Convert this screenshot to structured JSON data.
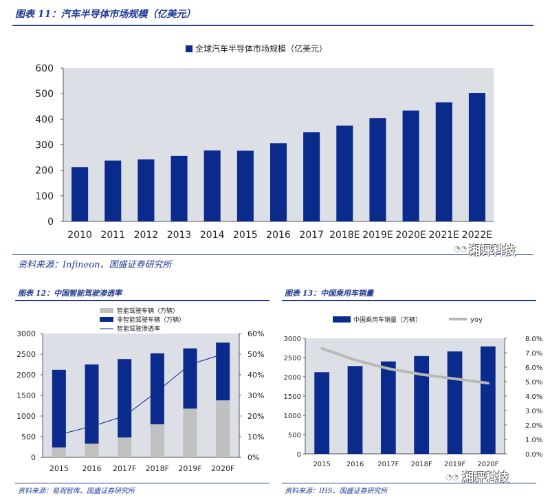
{
  "colors": {
    "accent": "#1f3a93",
    "bar_primary": "#0a2a8c",
    "bar_secondary": "#c0c0c0",
    "line": "#b8b8b8",
    "plot_bg": "#dcdfe6"
  },
  "fig11": {
    "header": "图表 11：汽车半导体市场规模（亿美元）",
    "source": "资料来源：Infineon、国盛证券研究所"
  },
  "fig12": {
    "header": "图表 12：中国智能驾驶渗透率",
    "source": "资料来源：易观智库、国盛证券研究所"
  },
  "fig13": {
    "header": "图表 13：中国乘用车销量",
    "source": "资料来源：IHS、国盛证券研究所"
  },
  "watermark": {
    "text": "湘评科技",
    "icon": "wechat-icon"
  },
  "chart_data": [
    {
      "id": "chart11",
      "type": "bar",
      "title": "",
      "categories": [
        "2010",
        "2011",
        "2012",
        "2013",
        "2014",
        "2015",
        "2016",
        "2017",
        "2018E",
        "2019E",
        "2020E",
        "2021E",
        "2022E"
      ],
      "series": [
        {
          "name": "全球汽车半导体市场规模（亿美元）",
          "values": [
            212,
            238,
            243,
            256,
            278,
            277,
            306,
            349,
            375,
            404,
            434,
            466,
            503
          ]
        }
      ],
      "ylim": [
        0,
        600
      ],
      "yticks": [
        0,
        100,
        200,
        300,
        400,
        500,
        600
      ],
      "ytick_labels": [
        "0",
        "100",
        "200",
        "300",
        "400",
        "500",
        "600"
      ],
      "legend": "top",
      "grid": false
    },
    {
      "id": "chart12",
      "type": "bar",
      "stacked": true,
      "categories": [
        "2015",
        "2016",
        "2017F",
        "2018F",
        "2019F",
        "2020F"
      ],
      "series": [
        {
          "name": "智能驾驶车辆（万辆）",
          "values": [
            240,
            330,
            480,
            800,
            1180,
            1380
          ]
        },
        {
          "name": "非智能驾驶车辆（万辆）",
          "values": [
            1880,
            1920,
            1900,
            1720,
            1460,
            1400
          ]
        },
        {
          "name": "智能驾驶渗透率",
          "axis": "right",
          "type": "line",
          "values": [
            0.11,
            0.15,
            0.2,
            0.32,
            0.45,
            0.5
          ]
        }
      ],
      "ylim": [
        0,
        3000
      ],
      "yticks": [
        0,
        500,
        1000,
        1500,
        2000,
        2500,
        3000
      ],
      "ytick_labels": [
        "0",
        "500",
        "1000",
        "1500",
        "2000",
        "2500",
        "3000"
      ],
      "y2lim": [
        0,
        0.6
      ],
      "y2ticks": [
        0,
        0.1,
        0.2,
        0.3,
        0.4,
        0.5,
        0.6
      ],
      "y2tick_labels": [
        "0%",
        "10%",
        "20%",
        "30%",
        "40%",
        "50%",
        "60%"
      ],
      "legend": "top",
      "grid": false
    },
    {
      "id": "chart13",
      "type": "bar",
      "categories": [
        "2015",
        "2016",
        "2017F",
        "2018F",
        "2019F",
        "2020F"
      ],
      "series": [
        {
          "name": "中国乘用车销量（万辆）",
          "values": [
            2120,
            2280,
            2400,
            2540,
            2660,
            2790
          ]
        },
        {
          "name": "yoy",
          "axis": "right",
          "type": "line",
          "values": [
            0.073,
            0.065,
            0.059,
            0.055,
            0.052,
            0.049
          ]
        }
      ],
      "ylim": [
        0,
        3000
      ],
      "yticks": [
        0,
        500,
        1000,
        1500,
        2000,
        2500,
        3000
      ],
      "ytick_labels": [
        "0",
        "500",
        "1000",
        "1500",
        "2000",
        "2500",
        "3000"
      ],
      "y2lim": [
        0,
        0.08
      ],
      "y2ticks": [
        0,
        0.01,
        0.02,
        0.03,
        0.04,
        0.05,
        0.06,
        0.07,
        0.08
      ],
      "y2tick_labels": [
        "0.0%",
        "1.0%",
        "2.0%",
        "3.0%",
        "4.0%",
        "5.0%",
        "6.0%",
        "7.0%",
        "8.0%"
      ],
      "legend": "top",
      "grid": false
    }
  ]
}
